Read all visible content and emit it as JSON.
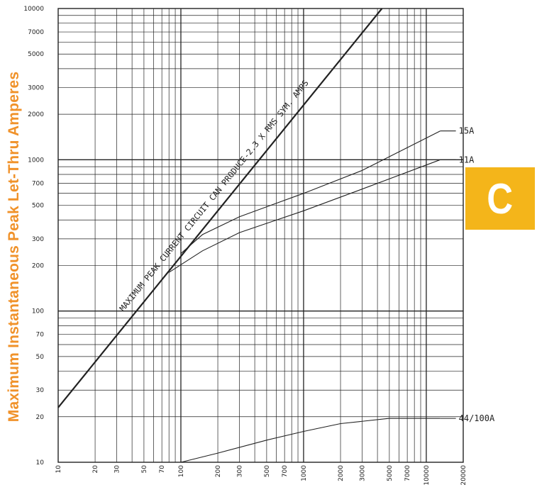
{
  "chart_data": {
    "type": "line",
    "ylabel": "Maximum Instantaneous Peak Let-Thru Amperes",
    "xlabel": "",
    "x_scale": "log",
    "y_scale": "log",
    "xlim": [
      10,
      20000
    ],
    "ylim": [
      10,
      10000
    ],
    "x_ticks": [
      "10",
      "20",
      "30",
      "50",
      "70",
      "100",
      "200",
      "300",
      "500",
      "700",
      "1000",
      "2000",
      "3000",
      "5000",
      "7000",
      "10000",
      "20000"
    ],
    "y_ticks": [
      "10000",
      "7000",
      "5000",
      "3000",
      "2000",
      "1000",
      "700",
      "500",
      "300",
      "200",
      "100",
      "70",
      "50",
      "30",
      "20",
      "10"
    ],
    "grid": true,
    "series": [
      {
        "label": "MAXIMUM PEAK CURRENT CIRCUIT CAN PRODUCE-2.3 X RMS SYM. AMPS",
        "x": [
          10,
          4350
        ],
        "y": [
          23,
          10000
        ]
      },
      {
        "name": "15A",
        "x": [
          100,
          150,
          300,
          1000,
          3000,
          13000
        ],
        "y": [
          240,
          320,
          420,
          600,
          850,
          1550
        ]
      },
      {
        "name": "11A",
        "x": [
          80,
          150,
          300,
          1000,
          3000,
          13000
        ],
        "y": [
          180,
          250,
          330,
          460,
          640,
          1000
        ]
      },
      {
        "name": "44/100A",
        "x": [
          100,
          200,
          500,
          1000,
          2000,
          5000,
          13000
        ],
        "y": [
          10,
          11.5,
          14,
          16,
          18,
          19.5,
          19.5
        ]
      }
    ]
  },
  "badge": {
    "letter": "C",
    "color": "#f4b51a"
  },
  "colors": {
    "ylabel": "#f0922a",
    "lines": "#222222"
  }
}
